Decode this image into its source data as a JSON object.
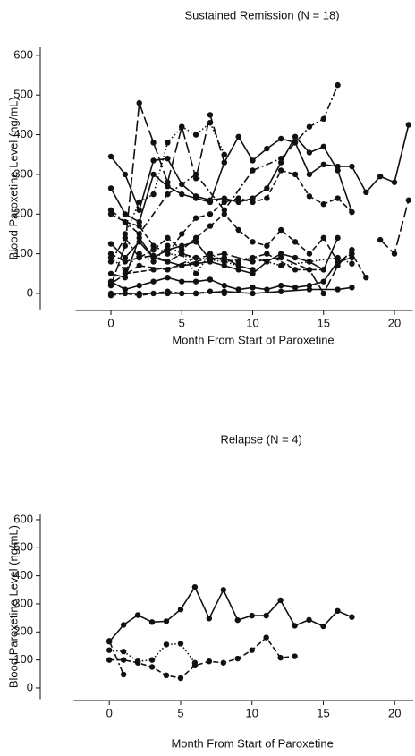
{
  "chart_data": [
    {
      "type": "line",
      "title": "Sustained Remission (N = 18)",
      "xlabel": "Month From Start of Paroxetine",
      "ylabel": "Blood Paroxetine Level (ng/mL)",
      "xlim": [
        -2.5,
        21.3
      ],
      "xticks": [
        0,
        5,
        10,
        15,
        20
      ],
      "ylim": [
        -40,
        620
      ],
      "yticks": [
        0,
        100,
        200,
        300,
        400,
        500,
        600
      ],
      "series": [
        {
          "color": "#111111",
          "linestyle": "solid",
          "x": [
            0,
            1,
            2,
            3,
            4,
            5,
            6,
            7,
            8,
            9,
            10,
            11,
            12,
            13,
            14,
            15,
            16,
            17
          ],
          "values": [
            345,
            300,
            210,
            335,
            340,
            275,
            245,
            235,
            240,
            230,
            240,
            265,
            330,
            395,
            355,
            370,
            310,
            205
          ]
        },
        {
          "color": "#111111",
          "linestyle": "longdash",
          "x": [
            0,
            1,
            2,
            3,
            4,
            5,
            6,
            7,
            8
          ],
          "values": [
            20,
            120,
            480,
            380,
            280,
            420,
            290,
            450,
            330
          ]
        },
        {
          "color": "#111111",
          "linestyle": "dotted",
          "x": [
            1,
            2,
            3,
            4,
            5,
            6,
            7,
            8
          ],
          "values": [
            150,
            230,
            250,
            380,
            420,
            400,
            430,
            350
          ]
        },
        {
          "color": "#111111",
          "linestyle": "solid",
          "x": [
            0,
            1,
            2,
            3,
            4,
            5,
            6,
            7,
            8,
            9,
            10,
            11,
            12,
            13,
            14,
            15,
            16,
            17,
            18,
            19,
            20,
            21
          ],
          "values": [
            265,
            200,
            180,
            300,
            270,
            250,
            240,
            230,
            330,
            395,
            335,
            365,
            390,
            380,
            300,
            325,
            320,
            320,
            255,
            295,
            280,
            425
          ]
        },
        {
          "color": "#111111",
          "linestyle": "dashdot",
          "x": [
            0,
            2,
            4,
            6,
            8,
            10,
            12,
            14,
            15,
            16
          ],
          "values": [
            210,
            150,
            250,
            300,
            210,
            310,
            340,
            420,
            440,
            525
          ]
        },
        {
          "color": "#111111",
          "linestyle": "dashed",
          "x": [
            0,
            1,
            2,
            3,
            4,
            5,
            6,
            7,
            8,
            9,
            10,
            11,
            12,
            13,
            14,
            15,
            16,
            17
          ],
          "values": [
            200,
            180,
            170,
            120,
            100,
            150,
            190,
            200,
            230,
            240,
            230,
            240,
            310,
            300,
            245,
            225,
            240,
            205
          ]
        },
        {
          "color": "#111111",
          "linestyle": "solid",
          "x": [
            0,
            1,
            2,
            3,
            4,
            5,
            6,
            7,
            8,
            9,
            10
          ],
          "values": [
            125,
            90,
            130,
            90,
            110,
            120,
            130,
            85,
            90,
            70,
            60
          ]
        },
        {
          "color": "#111111",
          "linestyle": "dashed",
          "x": [
            0,
            1,
            2,
            3,
            4,
            5,
            6,
            7,
            8,
            9,
            10,
            11,
            12,
            13,
            14,
            15,
            16,
            17,
            18
          ],
          "values": [
            100,
            80,
            90,
            110,
            140,
            110,
            140,
            170,
            200,
            160,
            130,
            120,
            160,
            130,
            100,
            140,
            80,
            100,
            40
          ]
        },
        {
          "color": "#111111",
          "linestyle": "dotted",
          "x": [
            0,
            1,
            2,
            3,
            4,
            5,
            6,
            7,
            8,
            9
          ],
          "values": [
            90,
            60,
            100,
            80,
            120,
            100,
            50,
            100,
            80,
            70
          ]
        },
        {
          "color": "#111111",
          "linestyle": "solid",
          "x": [
            0,
            1,
            2,
            3,
            4,
            5,
            6,
            7,
            8,
            9,
            10,
            11,
            12,
            13,
            14,
            15,
            16
          ],
          "values": [
            50,
            40,
            140,
            90,
            80,
            70,
            75,
            80,
            70,
            60,
            50,
            80,
            100,
            90,
            80,
            60,
            140
          ]
        },
        {
          "color": "#111111",
          "linestyle": "longdash",
          "x": [
            0,
            2,
            4,
            6,
            8,
            10,
            12,
            14,
            15,
            16,
            17
          ],
          "values": [
            25,
            70,
            60,
            90,
            100,
            80,
            90,
            60,
            0,
            70,
            110
          ]
        },
        {
          "color": "#111111",
          "linestyle": "solid",
          "x": [
            0,
            1,
            2,
            3,
            4,
            5,
            6,
            7,
            8,
            9,
            10,
            11,
            12,
            13,
            14,
            15,
            16,
            17
          ],
          "values": [
            30,
            10,
            20,
            30,
            40,
            30,
            30,
            35,
            20,
            10,
            15,
            10,
            20,
            15,
            20,
            30,
            80,
            90
          ]
        },
        {
          "color": "#111111",
          "linestyle": "dashed",
          "x": [
            0,
            1,
            2,
            3,
            4,
            5,
            6,
            7,
            8
          ],
          "values": [
            -5,
            0,
            -5,
            0,
            5,
            0,
            0,
            5,
            0
          ]
        },
        {
          "color": "#111111",
          "linestyle": "solid",
          "x": [
            0,
            2,
            4,
            6,
            8,
            10,
            12,
            14,
            16,
            17
          ],
          "values": [
            0,
            0,
            0,
            0,
            5,
            0,
            5,
            10,
            10,
            15
          ]
        },
        {
          "color": "#111111",
          "linestyle": "dashdot",
          "x": [
            0,
            1,
            2,
            3,
            4,
            5,
            6
          ],
          "values": [
            80,
            140,
            90,
            95,
            80,
            100,
            90
          ]
        },
        {
          "color": "#111111",
          "linestyle": "longdash",
          "x": [
            19,
            20,
            21
          ],
          "values": [
            135,
            100,
            235
          ]
        },
        {
          "color": "#111111",
          "linestyle": "dotted",
          "x": [
            4,
            6,
            8,
            10,
            12,
            14,
            16,
            17
          ],
          "values": [
            100,
            90,
            80,
            90,
            70,
            80,
            90,
            75
          ]
        },
        {
          "color": "#111111",
          "linestyle": "dashed",
          "x": [
            1,
            3,
            5,
            7,
            9,
            11,
            13,
            15
          ],
          "values": [
            50,
            60,
            70,
            90,
            80,
            100,
            60,
            60
          ]
        }
      ]
    },
    {
      "type": "line",
      "title": "Relapse (N = 4)",
      "xlabel": "Month From Start of Paroxetine",
      "ylabel": "Blood Paroxetine Level (ng/mL)",
      "xlim": [
        -2.5,
        21.3
      ],
      "xticks": [
        0,
        5,
        10,
        15,
        20
      ],
      "ylim": [
        -40,
        620
      ],
      "yticks": [
        0,
        100,
        200,
        300,
        400,
        500,
        600
      ],
      "series": [
        {
          "color": "#111111",
          "linestyle": "solid",
          "x": [
            0,
            1,
            2,
            3,
            4,
            5,
            6,
            7,
            8,
            9,
            10,
            11,
            12,
            13,
            14,
            15,
            16,
            17
          ],
          "values": [
            165,
            225,
            260,
            235,
            238,
            280,
            360,
            248,
            350,
            242,
            258,
            258,
            313,
            222,
            243,
            220,
            275,
            253
          ]
        },
        {
          "color": "#111111",
          "linestyle": "dashed",
          "x": [
            0,
            1,
            2,
            3,
            4,
            5,
            6,
            7,
            8,
            9,
            10,
            11,
            12,
            13
          ],
          "values": [
            100,
            100,
            90,
            75,
            45,
            35,
            80,
            95,
            90,
            105,
            135,
            180,
            108,
            113
          ]
        },
        {
          "color": "#111111",
          "linestyle": "dotted",
          "x": [
            0,
            1,
            2,
            3,
            4,
            5,
            6
          ],
          "values": [
            135,
            130,
            95,
            100,
            155,
            158,
            90
          ]
        },
        {
          "color": "#111111",
          "linestyle": "dashdot",
          "x": [
            0,
            1
          ],
          "values": [
            168,
            48
          ]
        }
      ]
    }
  ]
}
